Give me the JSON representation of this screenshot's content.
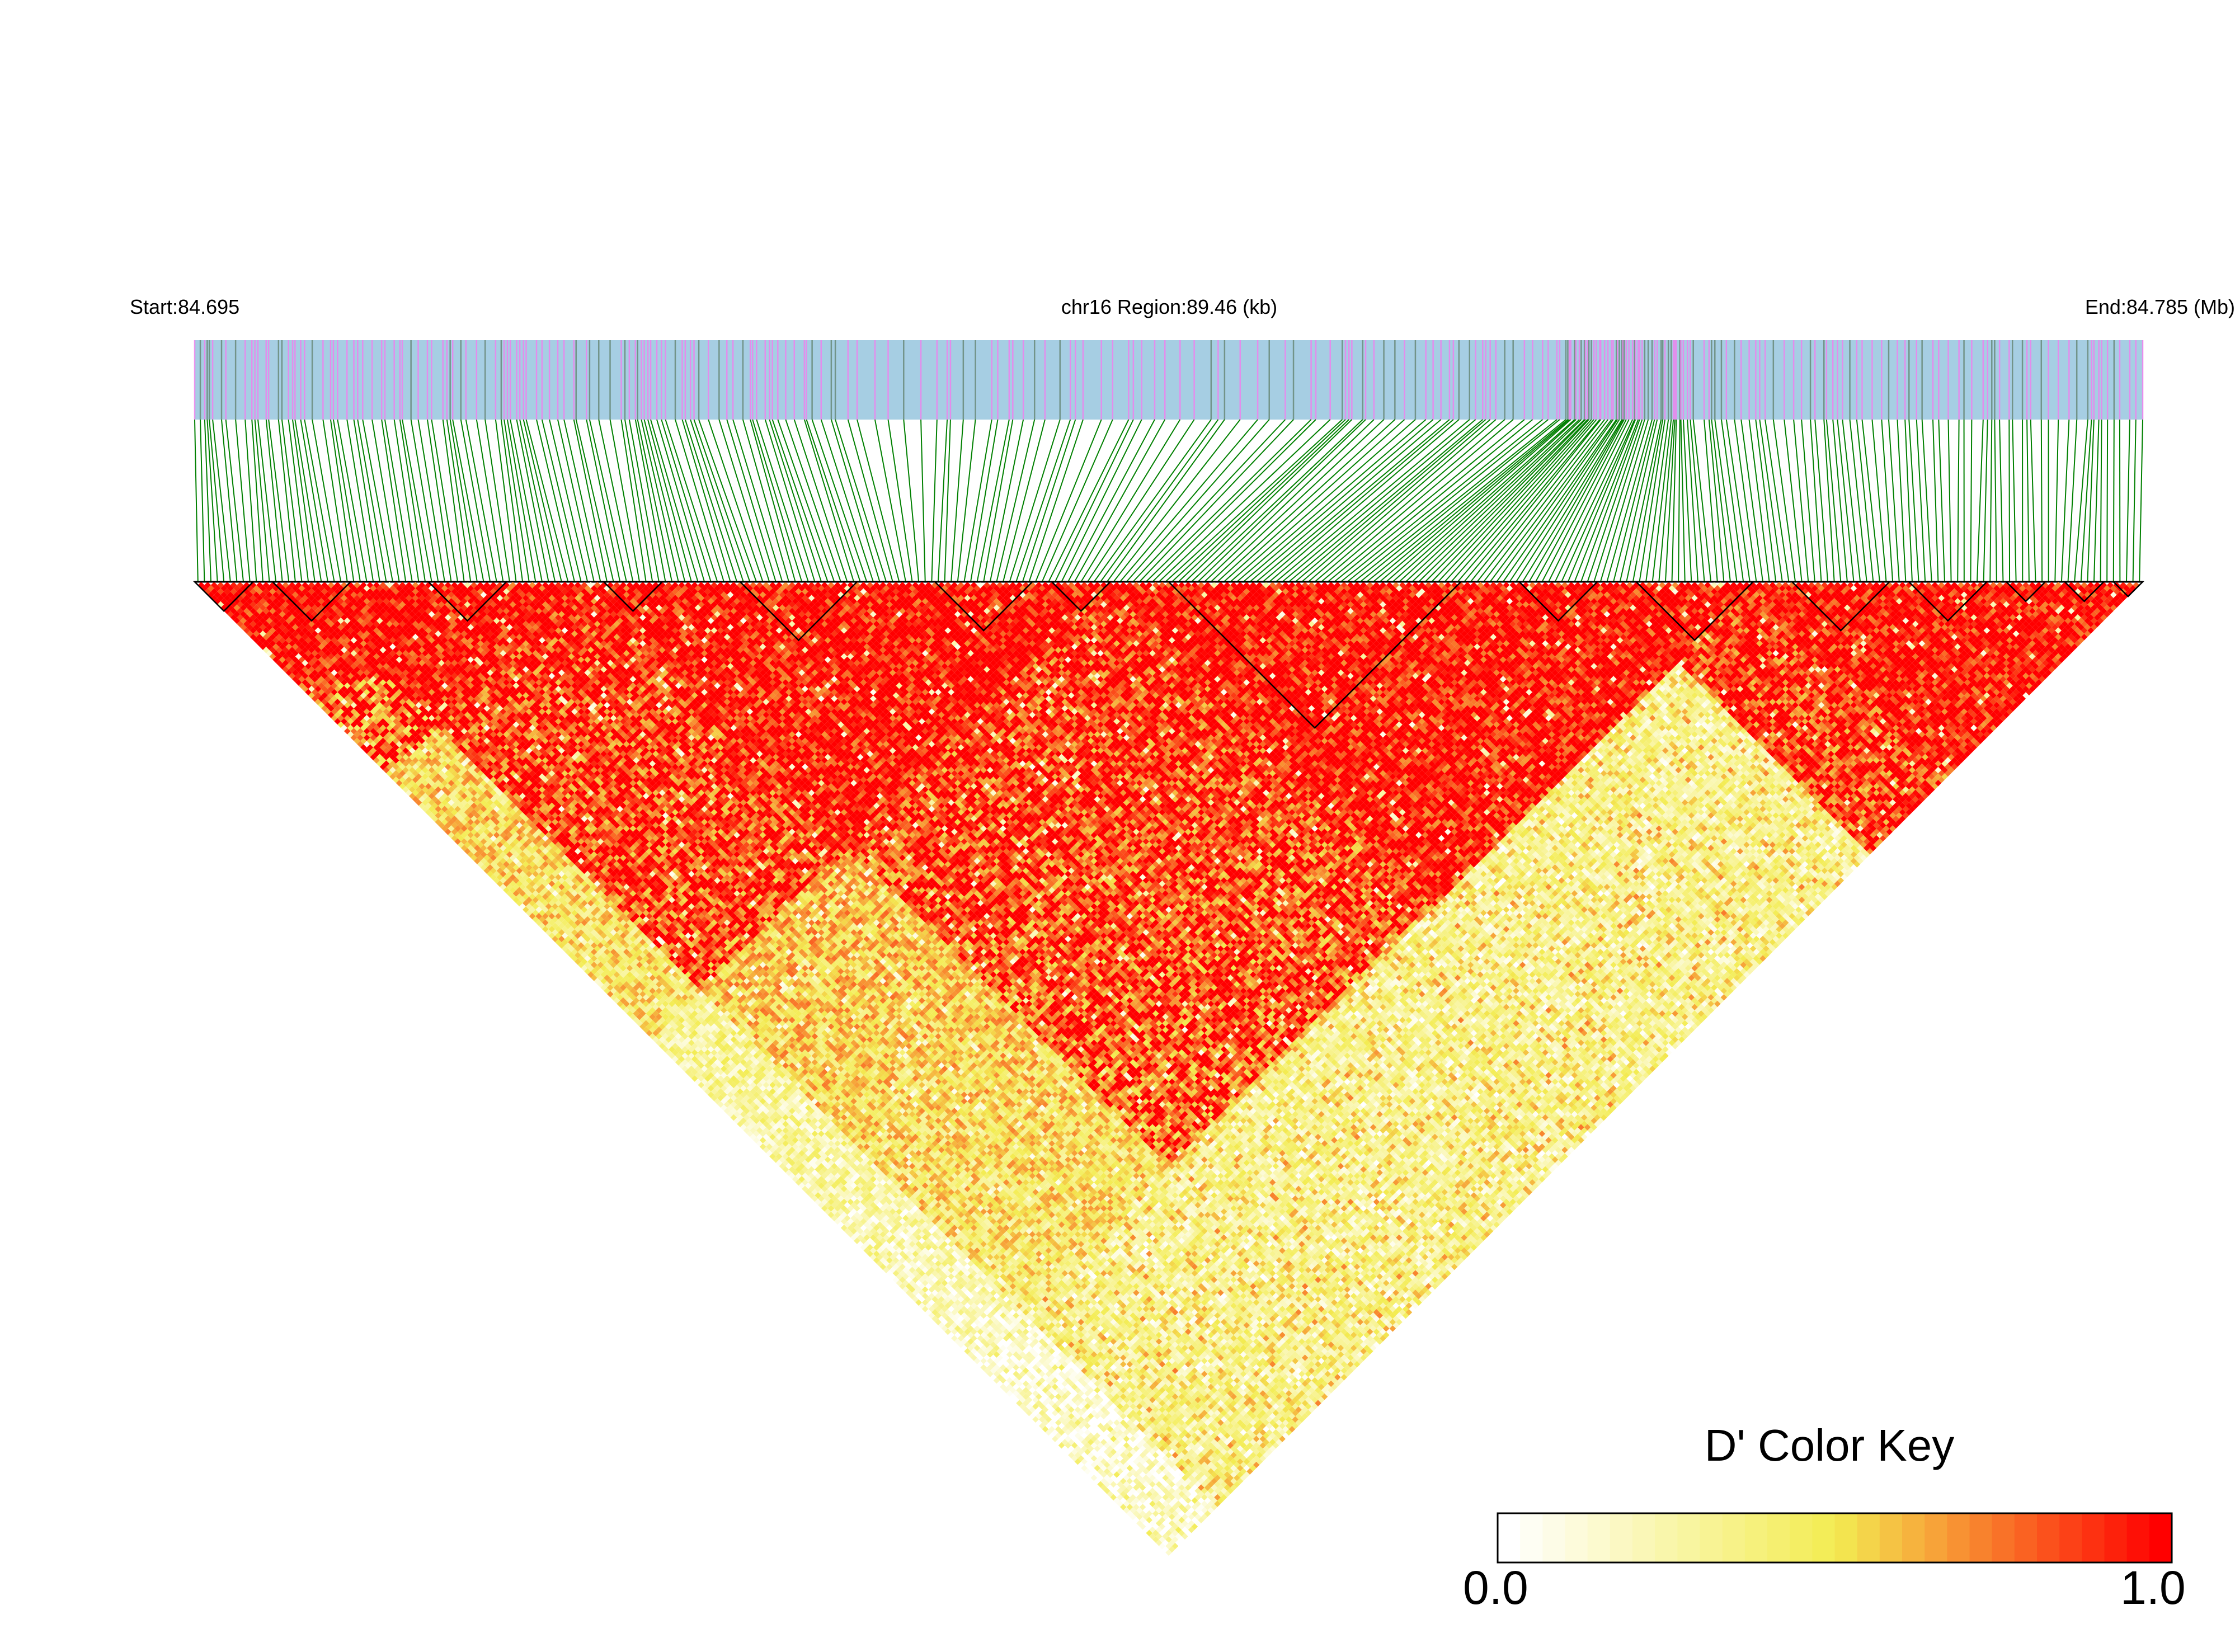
{
  "header": {
    "start_label": "Start:84.695",
    "region_label": "chr16 Region:89.46 (kb)",
    "end_label": "End:84.785 (Mb)"
  },
  "color_key": {
    "title": "D' Color Key",
    "min_label": "0.0",
    "max_label": "1.0",
    "stops": [
      "#ffffff",
      "#f3ec52",
      "#ff0000"
    ]
  },
  "chart_data": {
    "type": "heatmap",
    "subtype": "linkage-disequilibrium-triangle",
    "chromosome": "chr16",
    "region_start_mb": 84.695,
    "region_end_mb": 84.785,
    "region_length_kb": 89.46,
    "statistic": "D'",
    "value_range": [
      0.0,
      1.0
    ],
    "snp_count_approx": 300,
    "gene_track_color": "#a6cee3",
    "gene_track_mark_colors": [
      "#ee82ee",
      "#6a8a7a"
    ],
    "connector_color": "#008000",
    "ld_blocks_fraction": [
      [
        0.0,
        0.03
      ],
      [
        0.04,
        0.08
      ],
      [
        0.12,
        0.16
      ],
      [
        0.21,
        0.24
      ],
      [
        0.28,
        0.34
      ],
      [
        0.38,
        0.43
      ],
      [
        0.44,
        0.47
      ],
      [
        0.5,
        0.65
      ],
      [
        0.68,
        0.72
      ],
      [
        0.74,
        0.8
      ],
      [
        0.82,
        0.87
      ],
      [
        0.88,
        0.92
      ],
      [
        0.93,
        0.95
      ],
      [
        0.96,
        0.98
      ],
      [
        0.985,
        1.0
      ]
    ],
    "grid": false,
    "legend_position": "bottom-right"
  }
}
